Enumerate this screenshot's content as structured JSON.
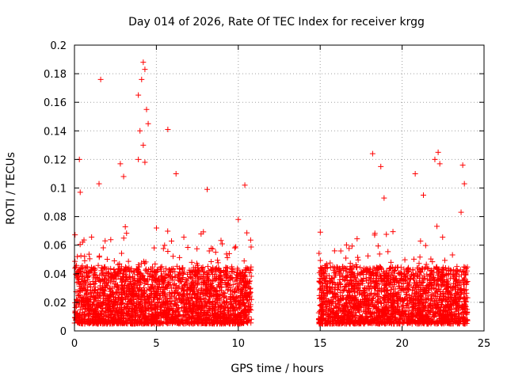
{
  "chart_data": {
    "type": "scatter",
    "title": "Day 014 of 2026, Rate Of TEC Index for receiver krgg",
    "xlabel": "GPS time / hours",
    "ylabel": "ROTI / TECUs",
    "xlim": [
      0,
      25
    ],
    "ylim": [
      0,
      0.2
    ],
    "xticks": [
      0,
      5,
      10,
      15,
      20,
      25
    ],
    "xtick_labels": [
      "0",
      "5",
      "10",
      "15",
      "20",
      "25"
    ],
    "yticks": [
      0,
      0.02,
      0.04,
      0.06,
      0.08,
      0.1,
      0.12,
      0.14,
      0.16,
      0.18,
      0.2
    ],
    "ytick_labels": [
      "0",
      "0.02",
      "0.04",
      "0.06",
      "0.08",
      "0.1",
      "0.12",
      "0.14",
      "0.16",
      "0.18",
      "0.2"
    ],
    "grid": true,
    "marker": "+",
    "marker_color": "#ff0000",
    "data_gaps_hours": [
      [
        10.8,
        14.9
      ]
    ],
    "notable_points": [
      {
        "x": 0.3,
        "y": 0.12
      },
      {
        "x": 0.35,
        "y": 0.097
      },
      {
        "x": 1.6,
        "y": 0.176
      },
      {
        "x": 1.5,
        "y": 0.103
      },
      {
        "x": 2.8,
        "y": 0.117
      },
      {
        "x": 3.0,
        "y": 0.108
      },
      {
        "x": 3.9,
        "y": 0.165
      },
      {
        "x": 4.1,
        "y": 0.176
      },
      {
        "x": 4.2,
        "y": 0.188
      },
      {
        "x": 4.3,
        "y": 0.183
      },
      {
        "x": 4.4,
        "y": 0.155
      },
      {
        "x": 4.0,
        "y": 0.14
      },
      {
        "x": 4.2,
        "y": 0.13
      },
      {
        "x": 4.5,
        "y": 0.145
      },
      {
        "x": 3.9,
        "y": 0.12
      },
      {
        "x": 4.3,
        "y": 0.118
      },
      {
        "x": 5.7,
        "y": 0.141
      },
      {
        "x": 6.2,
        "y": 0.11
      },
      {
        "x": 8.1,
        "y": 0.099
      },
      {
        "x": 10.4,
        "y": 0.102
      },
      {
        "x": 10.0,
        "y": 0.078
      },
      {
        "x": 18.2,
        "y": 0.124
      },
      {
        "x": 18.7,
        "y": 0.115
      },
      {
        "x": 18.9,
        "y": 0.093
      },
      {
        "x": 20.8,
        "y": 0.11
      },
      {
        "x": 21.3,
        "y": 0.095
      },
      {
        "x": 22.2,
        "y": 0.125
      },
      {
        "x": 22.3,
        "y": 0.117
      },
      {
        "x": 22.0,
        "y": 0.12
      },
      {
        "x": 23.7,
        "y": 0.116
      },
      {
        "x": 23.8,
        "y": 0.103
      },
      {
        "x": 23.6,
        "y": 0.083
      }
    ],
    "segments": [
      {
        "x_start": 0.0,
        "x_end": 10.8,
        "baseline_min": 0.005,
        "baseline_max": 0.045
      },
      {
        "x_start": 14.9,
        "x_end": 24.0,
        "baseline_min": 0.005,
        "baseline_max": 0.045
      }
    ]
  }
}
